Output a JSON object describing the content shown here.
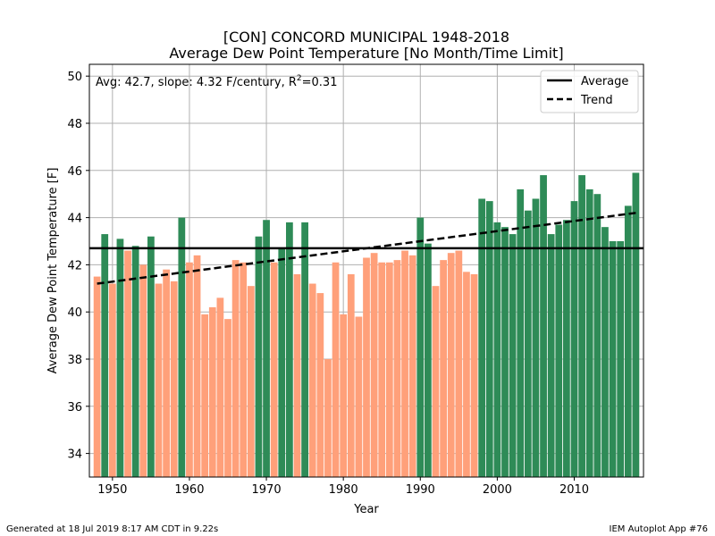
{
  "chart_data": {
    "type": "bar",
    "title_line1": "[CON] CONCORD MUNICIPAL 1948-2018",
    "title_line2": "Average Dew Point Temperature [No Month/Time Limit]",
    "xlabel": "Year",
    "ylabel": "Average Dew Point Temperature [F]",
    "xlim": [
      1947,
      2019
    ],
    "ylim": [
      33,
      50.5
    ],
    "xticks": [
      1950,
      1960,
      1970,
      1980,
      1990,
      2000,
      2010
    ],
    "yticks": [
      34,
      36,
      38,
      40,
      42,
      44,
      46,
      48,
      50
    ],
    "grid": true,
    "annotation": "Avg: 42.7, slope: 4.32 F/century, R",
    "annotation_sup": "2",
    "annotation_tail": "=0.31",
    "average": 42.7,
    "trend": {
      "start_year": 1948,
      "start_value": 41.2,
      "end_year": 2018,
      "end_value": 44.2
    },
    "legend": {
      "placement": "top-right",
      "items": [
        {
          "label": "Average",
          "style": "solid"
        },
        {
          "label": "Trend",
          "style": "dashed"
        }
      ]
    },
    "colors": {
      "above": "#2e8b57",
      "below": "#ffa07a",
      "lines": "#000000",
      "grid": "#b0b0b0"
    },
    "years": [
      1948,
      1949,
      1950,
      1951,
      1952,
      1953,
      1954,
      1955,
      1956,
      1957,
      1958,
      1959,
      1960,
      1961,
      1962,
      1963,
      1964,
      1965,
      1966,
      1967,
      1968,
      1969,
      1970,
      1971,
      1972,
      1973,
      1974,
      1975,
      1976,
      1977,
      1978,
      1979,
      1980,
      1981,
      1982,
      1983,
      1984,
      1985,
      1986,
      1987,
      1988,
      1989,
      1990,
      1991,
      1992,
      1993,
      1994,
      1995,
      1996,
      1997,
      1998,
      1999,
      2000,
      2001,
      2002,
      2003,
      2004,
      2005,
      2006,
      2007,
      2008,
      2009,
      2010,
      2011,
      2012,
      2013,
      2014,
      2015,
      2016,
      2017,
      2018
    ],
    "values": [
      41.5,
      43.3,
      41.2,
      43.1,
      42.6,
      42.8,
      42.0,
      43.2,
      41.2,
      41.8,
      41.3,
      44.0,
      42.1,
      42.4,
      39.9,
      40.2,
      40.6,
      39.7,
      42.2,
      42.1,
      41.1,
      43.2,
      43.9,
      42.1,
      42.7,
      43.8,
      41.6,
      43.8,
      41.2,
      40.8,
      38.0,
      42.1,
      39.9,
      41.6,
      39.8,
      42.3,
      42.5,
      42.1,
      42.1,
      42.2,
      42.6,
      42.4,
      44.0,
      42.9,
      41.1,
      42.2,
      42.5,
      42.6,
      41.7,
      41.6,
      44.8,
      44.7,
      43.8,
      43.6,
      43.3,
      45.2,
      44.3,
      44.8,
      45.8,
      43.3,
      43.7,
      43.9,
      44.7,
      45.8,
      45.2,
      45.0,
      43.6,
      43.0,
      43.0,
      44.5,
      45.9
    ]
  },
  "footer_left": "Generated at 18 Jul 2019 8:17 AM CDT in 9.22s",
  "footer_right": "IEM Autoplot App #76"
}
